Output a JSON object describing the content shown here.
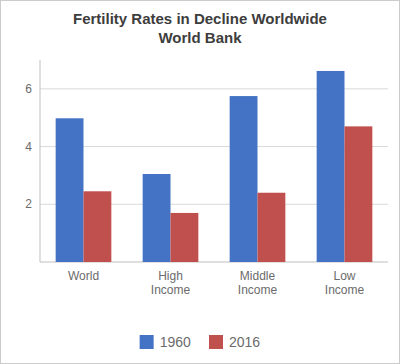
{
  "chart_data": {
    "type": "bar",
    "title": "Fertility Rates in Decline Worldwide",
    "subtitle": "World Bank",
    "categories": [
      "World",
      "High\nIncome",
      "Middle\nIncome",
      "Low\nIncome"
    ],
    "series": [
      {
        "name": "1960",
        "color": "#4472C4",
        "values": [
          4.98,
          3.05,
          5.75,
          6.62
        ]
      },
      {
        "name": "2016",
        "color": "#C0504D",
        "values": [
          2.45,
          1.7,
          2.4,
          4.7
        ]
      }
    ],
    "ylim": [
      0,
      7
    ],
    "yticks": [
      2,
      4,
      6
    ],
    "grid": true,
    "legend": "bottom"
  }
}
